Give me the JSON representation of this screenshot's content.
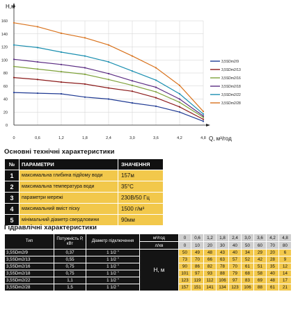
{
  "chart_data": {
    "type": "line",
    "ylabel": "H,м",
    "xlabel": "Q, м³/год",
    "xlim": [
      0,
      4.8
    ],
    "ylim": [
      0,
      160
    ],
    "x_ticks": [
      "0",
      "0,6",
      "1,2",
      "1,8",
      "2,4",
      "3,0",
      "3,6",
      "4,2",
      "4,8"
    ],
    "y_ticks": [
      "0",
      "20",
      "40",
      "60",
      "80",
      "100",
      "120",
      "140",
      "160"
    ],
    "grid": true,
    "legend_position": "right",
    "x": [
      0,
      0.6,
      1.2,
      1.8,
      2.4,
      3.0,
      3.6,
      4.2,
      4.8
    ],
    "series": [
      {
        "name": "3,5SDm2/9",
        "color": "#1f3a93",
        "values": [
          50,
          49,
          48,
          43,
          40,
          34,
          29,
          20,
          6
        ]
      },
      {
        "name": "3,5SDm2/13",
        "color": "#8b1a1a",
        "values": [
          73,
          70,
          66,
          63,
          57,
          52,
          42,
          28,
          9
        ]
      },
      {
        "name": "3,5SDm2/16",
        "color": "#7ea13a",
        "values": [
          90,
          86,
          82,
          78,
          70,
          61,
          51,
          35,
          12
        ]
      },
      {
        "name": "3,5SDm2/18",
        "color": "#5b2c83",
        "values": [
          101,
          97,
          93,
          88,
          79,
          68,
          58,
          40,
          14
        ]
      },
      {
        "name": "3,5SDm2/22",
        "color": "#1a8fb0",
        "values": [
          123,
          119,
          112,
          106,
          97,
          83,
          69,
          48,
          17
        ]
      },
      {
        "name": "3,5SDm2/28",
        "color": "#d9721c",
        "values": [
          157,
          151,
          141,
          134,
          123,
          106,
          88,
          61,
          21
        ]
      }
    ]
  },
  "tech": {
    "title": "Основні технічні характеристики",
    "header": {
      "num": "№",
      "param": "ПАРАМЕТРИ",
      "value": "ЗНАЧЕННЯ"
    },
    "rows": [
      {
        "num": "1",
        "param": "максимальна глибина підйому води",
        "value": "157м"
      },
      {
        "num": "2",
        "param": "максимальна температура води",
        "value": "35°С"
      },
      {
        "num": "3",
        "param": "параметри мережі",
        "value": "230В/50 Гц"
      },
      {
        "num": "4",
        "param": "максимальний вміст піску",
        "value": "1500 г/м³"
      },
      {
        "num": "5",
        "param": "мінімальний діаметр свердловини",
        "value": "90мм"
      }
    ]
  },
  "hydro": {
    "title": "Гідравлічні характеристики",
    "col_type": "Тип",
    "col_power": "Потужність Р, кВт",
    "col_diam": "Діаметр підключення",
    "q_unit": "м³/год",
    "lmin_unit": "л/хв",
    "h_label": "Н, м",
    "q": [
      "0",
      "0,6",
      "1,2",
      "1,8",
      "2,4",
      "3,0",
      "3,6",
      "4,2",
      "4,8"
    ],
    "lmin": [
      "0",
      "10",
      "20",
      "30",
      "40",
      "50",
      "60",
      "70",
      "80"
    ],
    "rows": [
      {
        "model": "3,5SDm2/9",
        "power": "0,37",
        "diam": "1 1/2 \"",
        "h": [
          "50",
          "49",
          "48",
          "43",
          "40",
          "34",
          "29",
          "20",
          "6"
        ]
      },
      {
        "model": "3,5SDm2/13",
        "power": "0,55",
        "diam": "1 1/2 \"",
        "h": [
          "73",
          "70",
          "66",
          "63",
          "57",
          "52",
          "42",
          "28",
          "9"
        ]
      },
      {
        "model": "3,5SDm2/16",
        "power": "0,75",
        "diam": "1 1/2 \"",
        "h": [
          "90",
          "86",
          "82",
          "78",
          "70",
          "61",
          "51",
          "35",
          "12"
        ]
      },
      {
        "model": "3,5SDm2/18",
        "power": "0,75",
        "diam": "1 1/2 \"",
        "h": [
          "101",
          "97",
          "93",
          "88",
          "79",
          "68",
          "58",
          "40",
          "14"
        ]
      },
      {
        "model": "3,5SDm2/22",
        "power": "1,1",
        "diam": "1 1/2 \"",
        "h": [
          "123",
          "119",
          "112",
          "106",
          "97",
          "83",
          "69",
          "48",
          "17"
        ]
      },
      {
        "model": "3,5SDm2/28",
        "power": "1,5",
        "diam": "1 1/2 \"",
        "h": [
          "157",
          "151",
          "141",
          "134",
          "123",
          "106",
          "88",
          "61",
          "21"
        ]
      }
    ]
  }
}
